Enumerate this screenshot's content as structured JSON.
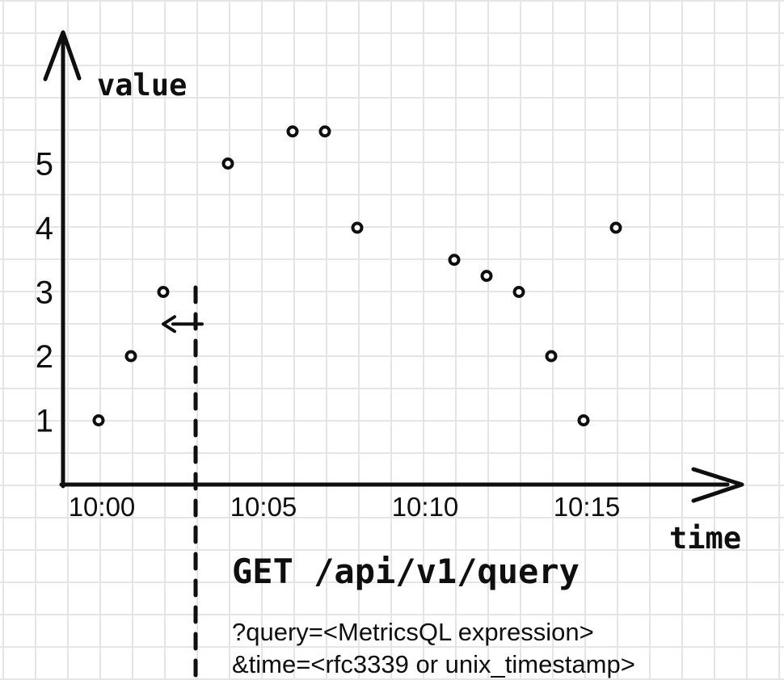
{
  "chart_data": {
    "type": "scatter",
    "title": "",
    "ylabel": "value",
    "xlabel": "time",
    "grid": true,
    "x_tick_labels": [
      "10:00",
      "10:05",
      "10:10",
      "10:15"
    ],
    "x_tick_minutes": [
      0,
      5,
      10,
      15
    ],
    "y_tick_labels": [
      "1",
      "2",
      "3",
      "4",
      "5"
    ],
    "y_tick_values": [
      1,
      2,
      3,
      4,
      5
    ],
    "xlim_minutes": [
      0,
      17
    ],
    "ylim": [
      0,
      7
    ],
    "points": [
      {
        "time": "10:00",
        "minute": 0,
        "value": 1
      },
      {
        "time": "10:01",
        "minute": 1,
        "value": 2
      },
      {
        "time": "10:02",
        "minute": 2,
        "value": 3
      },
      {
        "time": "10:04",
        "minute": 4,
        "value": 5
      },
      {
        "time": "10:06",
        "minute": 6,
        "value": 5.5
      },
      {
        "time": "10:07",
        "minute": 7,
        "value": 5.5
      },
      {
        "time": "10:08",
        "minute": 8,
        "value": 4
      },
      {
        "time": "10:11",
        "minute": 11,
        "value": 3.5
      },
      {
        "time": "10:12",
        "minute": 12,
        "value": 3.25
      },
      {
        "time": "10:13",
        "minute": 13,
        "value": 3
      },
      {
        "time": "10:14",
        "minute": 14,
        "value": 2
      },
      {
        "time": "10:15",
        "minute": 15,
        "value": 1
      },
      {
        "time": "10:16",
        "minute": 16,
        "value": 4
      }
    ],
    "query_time_marker": {
      "minute": 3,
      "style": "dashed-vertical-line",
      "arrow": {
        "direction": "left",
        "at_value": 2.5
      }
    }
  },
  "annotation": {
    "endpoint": "GET /api/v1/query",
    "params": [
      "?query=<MetricsQL expression>",
      "&time=<rfc3339 or unix_timestamp>"
    ]
  },
  "colors": {
    "ink": "#0f0f0f",
    "grid": "#e5e5e5",
    "background": "#ffffff",
    "point_fill": "#ffffff"
  }
}
